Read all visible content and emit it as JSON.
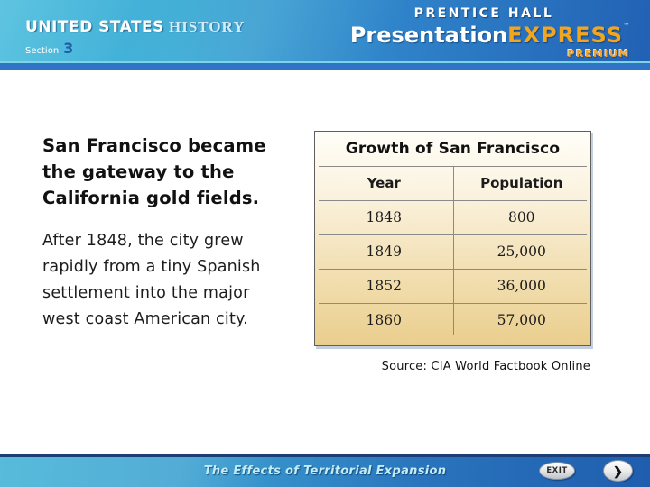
{
  "header": {
    "brand_left": {
      "united_states": "UNITED STATES",
      "history": "HISTORY",
      "section_label": "Section",
      "section_number": "3"
    },
    "brand_right": {
      "prentice_hall": "PRENTICE HALL",
      "presentation": "Presentation",
      "express": "EXPRESS",
      "trademark": "™",
      "premium": "PREMIUM"
    }
  },
  "main": {
    "heading": "San Francisco became\nthe gateway to the\nCalifornia gold fields.",
    "paragraph": "After 1848, the city grew\nrapidly from a tiny Spanish\nsettlement into the major\nwest coast American city.",
    "table": {
      "title": "Growth of San Francisco",
      "columns": [
        "Year",
        "Population"
      ],
      "rows": [
        [
          "1848",
          "800"
        ],
        [
          "1849",
          "25,000"
        ],
        [
          "1852",
          "36,000"
        ],
        [
          "1860",
          "57,000"
        ]
      ]
    },
    "source_note": "Source: CIA World Factbook Online"
  },
  "footer": {
    "title": "The Effects of Territorial Expansion",
    "exit_label": "EXIT",
    "next_icon": "❯"
  },
  "colors": {
    "header_blue_left": "#49b9db",
    "header_blue_right": "#2263b6",
    "accent_orange": "#f2a51f",
    "table_tan_bottom": "#eace8e",
    "footer_text": "#c2ecf6"
  }
}
